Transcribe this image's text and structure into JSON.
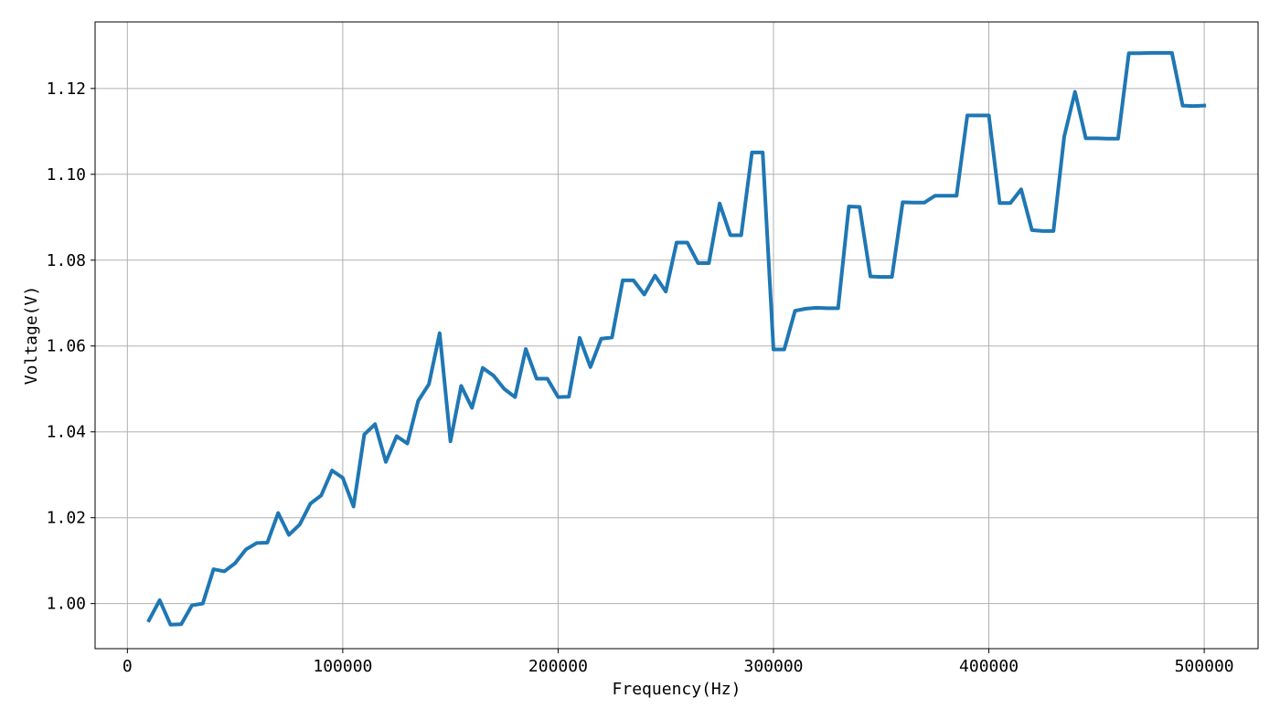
{
  "chart_data": {
    "type": "line",
    "title": "",
    "xlabel": "Frequency(Hz)",
    "ylabel": "Voltage(V)",
    "xlim": [
      -15000,
      525000
    ],
    "ylim": [
      0.9895,
      1.1355
    ],
    "xticks": [
      0,
      100000,
      200000,
      300000,
      400000,
      500000
    ],
    "xtick_labels": [
      "0",
      "100000",
      "200000",
      "300000",
      "400000",
      "500000"
    ],
    "yticks": [
      1.0,
      1.02,
      1.04,
      1.06,
      1.08,
      1.1,
      1.12
    ],
    "ytick_labels": [
      "1.00",
      "1.02",
      "1.04",
      "1.06",
      "1.08",
      "1.10",
      "1.12"
    ],
    "grid": true,
    "line_color": "#1f77b4",
    "series": [
      {
        "name": "Voltage",
        "x": [
          10000,
          15000,
          20000,
          25000,
          30000,
          35000,
          40000,
          45000,
          50000,
          55000,
          60000,
          65000,
          70000,
          75000,
          80000,
          85000,
          90000,
          95000,
          100000,
          105000,
          110000,
          115000,
          120000,
          125000,
          130000,
          135000,
          140000,
          145000,
          150000,
          155000,
          160000,
          165000,
          170000,
          175000,
          180000,
          185000,
          190000,
          195000,
          200000,
          205000,
          210000,
          215000,
          220000,
          225000,
          230000,
          235000,
          240000,
          245000,
          250000,
          255000,
          260000,
          265000,
          270000,
          275000,
          280000,
          285000,
          290000,
          295000,
          300000,
          305000,
          310000,
          315000,
          320000,
          325000,
          330000,
          335000,
          340000,
          345000,
          350000,
          355000,
          360000,
          365000,
          370000,
          375000,
          380000,
          385000,
          390000,
          395000,
          400000,
          405000,
          410000,
          415000,
          420000,
          425000,
          430000,
          435000,
          440000,
          445000,
          450000,
          455000,
          460000,
          465000,
          470000,
          475000,
          480000,
          485000,
          490000,
          495000,
          500000
        ],
        "y": [
          0.9961,
          1.0008,
          0.9951,
          0.9952,
          0.9996,
          1.0,
          1.008,
          1.0075,
          1.0094,
          1.0126,
          1.0141,
          1.0142,
          1.0211,
          1.016,
          1.0184,
          1.0233,
          1.0252,
          1.031,
          1.0293,
          1.0226,
          1.0394,
          1.0418,
          1.033,
          1.039,
          1.0373,
          1.0472,
          1.0511,
          1.063,
          1.0378,
          1.0507,
          1.0456,
          1.0549,
          1.0531,
          1.05,
          1.0481,
          1.0593,
          1.0524,
          1.0524,
          1.0481,
          1.0482,
          1.0619,
          1.0551,
          1.0617,
          1.062,
          1.0753,
          1.0753,
          1.072,
          1.0764,
          1.0727,
          1.0841,
          1.0841,
          1.0793,
          1.0793,
          1.0932,
          1.0858,
          1.0858,
          1.1051,
          1.1051,
          1.0592,
          1.0592,
          1.0682,
          1.0687,
          1.0689,
          1.0688,
          1.0688,
          1.0925,
          1.0924,
          1.0762,
          1.0761,
          1.0761,
          1.0935,
          1.0934,
          1.0934,
          1.095,
          1.095,
          1.095,
          1.1137,
          1.1137,
          1.1137,
          1.0933,
          1.0933,
          1.0965,
          1.087,
          1.0868,
          1.0868,
          1.1088,
          1.1192,
          1.1084,
          1.1084,
          1.1083,
          1.1083,
          1.1282,
          1.1282,
          1.1283,
          1.1283,
          1.1283,
          1.116,
          1.1159,
          1.116
        ]
      }
    ]
  }
}
